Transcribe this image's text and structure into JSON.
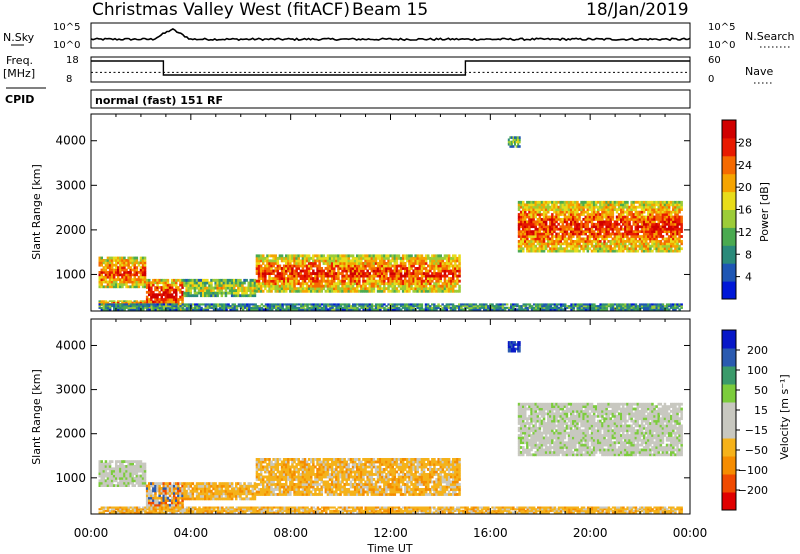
{
  "chart_data": {
    "type": "heatmap",
    "title": {
      "left": "Christmas Valley West (fitACF)",
      "center": "Beam 15",
      "right": "18/Jan/2019"
    },
    "xlabel": "Time UT",
    "x_ticks": [
      "00:00",
      "04:00",
      "08:00",
      "12:00",
      "16:00",
      "20:00",
      "00:00"
    ],
    "xlim_hours": [
      0,
      24
    ],
    "top_panels": {
      "nsky": {
        "label": "N.Sky",
        "left_ticks": [
          "10^5",
          "10^0"
        ],
        "right_ticks": [
          "10^5",
          "10^0"
        ],
        "right_label": "N.Search",
        "baseline_level": 0.35,
        "bump": {
          "start_hour": 2.5,
          "end_hour": 4.0,
          "level": 0.75
        }
      },
      "freq": {
        "label": "Freq.",
        "unit": "[MHz]",
        "left_ticks": [
          "18",
          "8"
        ],
        "right_ticks": [
          "60",
          "0"
        ],
        "right_label": "Nave",
        "steps_mhz": [
          {
            "start_hour": 0.0,
            "end_hour": 2.9,
            "value": 16.4
          },
          {
            "start_hour": 2.9,
            "end_hour": 15.0,
            "value": 10.8
          },
          {
            "start_hour": 15.0,
            "end_hour": 24.0,
            "value": 16.4
          }
        ],
        "nave_level": 23
      },
      "cpid": {
        "label": "CPID",
        "text": "normal (fast) 151 RF"
      }
    },
    "panels": [
      {
        "name": "Power",
        "ylabel": "Slant Range [km]",
        "ylim_km": [
          180,
          4600
        ],
        "y_ticks": [
          1000,
          2000,
          3000,
          4000
        ],
        "colorbar": {
          "label": "Power [dB]",
          "ticks": [
            "28",
            "24",
            "20",
            "16",
            "12",
            "8",
            "4"
          ],
          "colors": [
            "#0018d8",
            "#1e56b4",
            "#2a8a7a",
            "#4aaa50",
            "#9ccc38",
            "#e8dc1a",
            "#f5a400",
            "#f56a00",
            "#e81a00",
            "#d00000"
          ]
        },
        "echo_regions": [
          {
            "start_hour": 0.3,
            "end_hour": 2.2,
            "range_km": [
              700,
              1400
            ],
            "level": 0.85
          },
          {
            "start_hour": 2.2,
            "end_hour": 3.7,
            "range_km": [
              200,
              900
            ],
            "level": 0.95
          },
          {
            "start_hour": 0.3,
            "end_hour": 2.2,
            "range_km": [
              300,
              420
            ],
            "level": 0.75
          },
          {
            "start_hour": 3.7,
            "end_hour": 6.6,
            "range_km": [
              500,
              900
            ],
            "level": 0.55
          },
          {
            "start_hour": 6.6,
            "end_hour": 14.8,
            "range_km": [
              600,
              1450
            ],
            "level": 0.85
          },
          {
            "start_hour": 17.1,
            "end_hour": 23.7,
            "range_km": [
              1500,
              2650
            ],
            "level": 0.88
          },
          {
            "start_hour": 16.7,
            "end_hour": 17.2,
            "range_km": [
              3850,
              4100
            ],
            "level": 0.45
          },
          {
            "start_hour": 0.3,
            "end_hour": 23.7,
            "range_km": [
              200,
              350
            ],
            "level": 0.35
          }
        ]
      },
      {
        "name": "Velocity",
        "ylabel": "Slant Range [km]",
        "ylim_km": [
          180,
          4600
        ],
        "y_ticks": [
          1000,
          2000,
          3000,
          4000
        ],
        "colorbar": {
          "label": "Velocity [m s⁻¹]",
          "ticks": [
            "200",
            "100",
            "50",
            "15",
            "−15",
            "−50",
            "−100",
            "−200"
          ],
          "colors": [
            "#e00000",
            "#f04a00",
            "#f58c00",
            "#f5b21a",
            "#c8c8c0",
            "#c8c8c0",
            "#7ccc3c",
            "#3a9a6a",
            "#2a5ab0",
            "#0818c8"
          ]
        },
        "echo_regions": [
          {
            "start_hour": 0.3,
            "end_hour": 2.2,
            "range_km": [
              800,
              1400
            ],
            "velocity_class": "ground"
          },
          {
            "start_hour": 2.2,
            "end_hour": 3.7,
            "range_km": [
              300,
              900
            ],
            "velocity_class": "mixed"
          },
          {
            "start_hour": 3.7,
            "end_hour": 6.6,
            "range_km": [
              500,
              900
            ],
            "velocity_class": "negative"
          },
          {
            "start_hour": 6.6,
            "end_hour": 14.8,
            "range_km": [
              600,
              1450
            ],
            "velocity_class": "negative"
          },
          {
            "start_hour": 17.1,
            "end_hour": 23.7,
            "range_km": [
              1500,
              2700
            ],
            "velocity_class": "ground"
          },
          {
            "start_hour": 16.7,
            "end_hour": 17.2,
            "range_km": [
              3850,
              4100
            ],
            "velocity_class": "positive"
          },
          {
            "start_hour": 0.3,
            "end_hour": 23.7,
            "range_km": [
              200,
              350
            ],
            "velocity_class": "negative"
          }
        ]
      }
    ]
  }
}
